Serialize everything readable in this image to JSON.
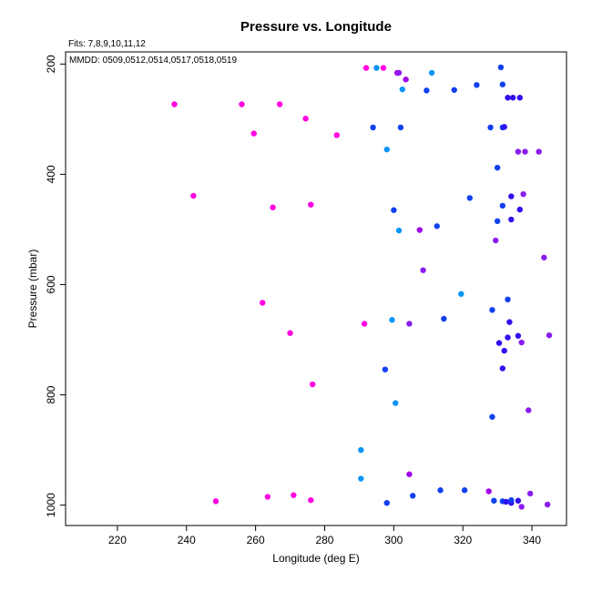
{
  "chart_data": {
    "type": "scatter",
    "title": "Pressure vs. Longitude",
    "fits_label": "Fits: 7,8,9,10,11,12",
    "mmdd_label": "MMDD: 0509,0512,0514,0517,0518,0519",
    "xlabel": "Longitude (deg E)",
    "ylabel": "Pressure (mbar)",
    "xlim": [
      205,
      350
    ],
    "ylim": [
      1037,
      178
    ],
    "y_reversed": true,
    "grid": false,
    "x_ticks": [
      220,
      240,
      260,
      280,
      300,
      320,
      340
    ],
    "y_ticks": [
      200,
      400,
      600,
      800,
      1000
    ],
    "colors": {
      "magenta": "#ff00e0",
      "purple": "#a000e8",
      "violet": "#8a1cf0",
      "indigo": "#3010f0",
      "blue": "#1040f0",
      "azure": "#0a96f5"
    },
    "points": [
      {
        "x": 292.0,
        "y": 207,
        "c": "magenta"
      },
      {
        "x": 297.0,
        "y": 207,
        "c": "magenta"
      },
      {
        "x": 295.0,
        "y": 207,
        "c": "azure"
      },
      {
        "x": 301.0,
        "y": 216,
        "c": "purple"
      },
      {
        "x": 301.5,
        "y": 216,
        "c": "violet"
      },
      {
        "x": 303.5,
        "y": 228,
        "c": "purple"
      },
      {
        "x": 302.5,
        "y": 246,
        "c": "azure"
      },
      {
        "x": 311.0,
        "y": 216,
        "c": "azure"
      },
      {
        "x": 331.0,
        "y": 206,
        "c": "blue"
      },
      {
        "x": 331.5,
        "y": 237,
        "c": "blue"
      },
      {
        "x": 309.5,
        "y": 248,
        "c": "blue"
      },
      {
        "x": 317.5,
        "y": 247,
        "c": "blue"
      },
      {
        "x": 324.0,
        "y": 238,
        "c": "blue"
      },
      {
        "x": 333.0,
        "y": 261,
        "c": "indigo"
      },
      {
        "x": 334.5,
        "y": 261,
        "c": "indigo"
      },
      {
        "x": 336.5,
        "y": 261,
        "c": "indigo"
      },
      {
        "x": 236.5,
        "y": 273,
        "c": "magenta"
      },
      {
        "x": 256.0,
        "y": 273,
        "c": "magenta"
      },
      {
        "x": 267.0,
        "y": 273,
        "c": "magenta"
      },
      {
        "x": 274.5,
        "y": 299,
        "c": "magenta"
      },
      {
        "x": 259.5,
        "y": 326,
        "c": "magenta"
      },
      {
        "x": 283.5,
        "y": 329,
        "c": "magenta"
      },
      {
        "x": 294.0,
        "y": 315,
        "c": "blue"
      },
      {
        "x": 302.0,
        "y": 315,
        "c": "blue"
      },
      {
        "x": 328.0,
        "y": 315,
        "c": "blue"
      },
      {
        "x": 331.5,
        "y": 315,
        "c": "blue"
      },
      {
        "x": 332.0,
        "y": 314,
        "c": "indigo"
      },
      {
        "x": 298.0,
        "y": 355,
        "c": "azure"
      },
      {
        "x": 336.0,
        "y": 359,
        "c": "violet"
      },
      {
        "x": 338.0,
        "y": 359,
        "c": "violet"
      },
      {
        "x": 342.0,
        "y": 359,
        "c": "violet"
      },
      {
        "x": 330.0,
        "y": 388,
        "c": "blue"
      },
      {
        "x": 242.0,
        "y": 439,
        "c": "magenta"
      },
      {
        "x": 265.0,
        "y": 460,
        "c": "magenta"
      },
      {
        "x": 276.0,
        "y": 455,
        "c": "magenta"
      },
      {
        "x": 300.0,
        "y": 465,
        "c": "blue"
      },
      {
        "x": 322.0,
        "y": 443,
        "c": "blue"
      },
      {
        "x": 334.0,
        "y": 440,
        "c": "indigo"
      },
      {
        "x": 337.5,
        "y": 436,
        "c": "violet"
      },
      {
        "x": 331.5,
        "y": 457,
        "c": "blue"
      },
      {
        "x": 336.5,
        "y": 464,
        "c": "indigo"
      },
      {
        "x": 330.0,
        "y": 485,
        "c": "blue"
      },
      {
        "x": 334.0,
        "y": 482,
        "c": "indigo"
      },
      {
        "x": 312.5,
        "y": 494,
        "c": "blue"
      },
      {
        "x": 301.5,
        "y": 502,
        "c": "azure"
      },
      {
        "x": 307.5,
        "y": 501,
        "c": "purple"
      },
      {
        "x": 329.5,
        "y": 520,
        "c": "violet"
      },
      {
        "x": 343.5,
        "y": 551,
        "c": "violet"
      },
      {
        "x": 308.5,
        "y": 574,
        "c": "violet"
      },
      {
        "x": 319.5,
        "y": 617,
        "c": "azure"
      },
      {
        "x": 262.0,
        "y": 633,
        "c": "magenta"
      },
      {
        "x": 333.0,
        "y": 627,
        "c": "blue"
      },
      {
        "x": 328.5,
        "y": 646,
        "c": "blue"
      },
      {
        "x": 291.5,
        "y": 671,
        "c": "magenta"
      },
      {
        "x": 299.5,
        "y": 664,
        "c": "azure"
      },
      {
        "x": 304.5,
        "y": 671,
        "c": "violet"
      },
      {
        "x": 314.5,
        "y": 662,
        "c": "blue"
      },
      {
        "x": 333.5,
        "y": 668,
        "c": "indigo"
      },
      {
        "x": 270.0,
        "y": 688,
        "c": "magenta"
      },
      {
        "x": 333.0,
        "y": 696,
        "c": "indigo"
      },
      {
        "x": 336.0,
        "y": 693,
        "c": "indigo"
      },
      {
        "x": 330.5,
        "y": 706,
        "c": "indigo"
      },
      {
        "x": 337.0,
        "y": 705,
        "c": "violet"
      },
      {
        "x": 345.0,
        "y": 692,
        "c": "violet"
      },
      {
        "x": 332.0,
        "y": 720,
        "c": "indigo"
      },
      {
        "x": 297.5,
        "y": 754,
        "c": "blue"
      },
      {
        "x": 331.5,
        "y": 752,
        "c": "indigo"
      },
      {
        "x": 276.5,
        "y": 781,
        "c": "magenta"
      },
      {
        "x": 300.5,
        "y": 815,
        "c": "azure"
      },
      {
        "x": 339.0,
        "y": 828,
        "c": "violet"
      },
      {
        "x": 328.5,
        "y": 840,
        "c": "blue"
      },
      {
        "x": 290.5,
        "y": 900,
        "c": "azure"
      },
      {
        "x": 290.5,
        "y": 952,
        "c": "azure"
      },
      {
        "x": 304.5,
        "y": 944,
        "c": "purple"
      },
      {
        "x": 313.5,
        "y": 973,
        "c": "blue"
      },
      {
        "x": 320.5,
        "y": 973,
        "c": "blue"
      },
      {
        "x": 327.5,
        "y": 975,
        "c": "purple"
      },
      {
        "x": 305.5,
        "y": 983,
        "c": "blue"
      },
      {
        "x": 339.5,
        "y": 979,
        "c": "violet"
      },
      {
        "x": 248.5,
        "y": 993,
        "c": "magenta"
      },
      {
        "x": 263.5,
        "y": 985,
        "c": "magenta"
      },
      {
        "x": 271.0,
        "y": 982,
        "c": "magenta"
      },
      {
        "x": 276.0,
        "y": 991,
        "c": "magenta"
      },
      {
        "x": 298.0,
        "y": 996,
        "c": "blue"
      },
      {
        "x": 329.0,
        "y": 992,
        "c": "blue"
      },
      {
        "x": 331.5,
        "y": 993,
        "c": "blue"
      },
      {
        "x": 332.5,
        "y": 994,
        "c": "indigo"
      },
      {
        "x": 334.0,
        "y": 996,
        "c": "indigo"
      },
      {
        "x": 334.0,
        "y": 991,
        "c": "blue"
      },
      {
        "x": 336.0,
        "y": 992,
        "c": "indigo"
      },
      {
        "x": 337.0,
        "y": 1003,
        "c": "violet"
      },
      {
        "x": 344.5,
        "y": 999,
        "c": "violet"
      }
    ]
  }
}
